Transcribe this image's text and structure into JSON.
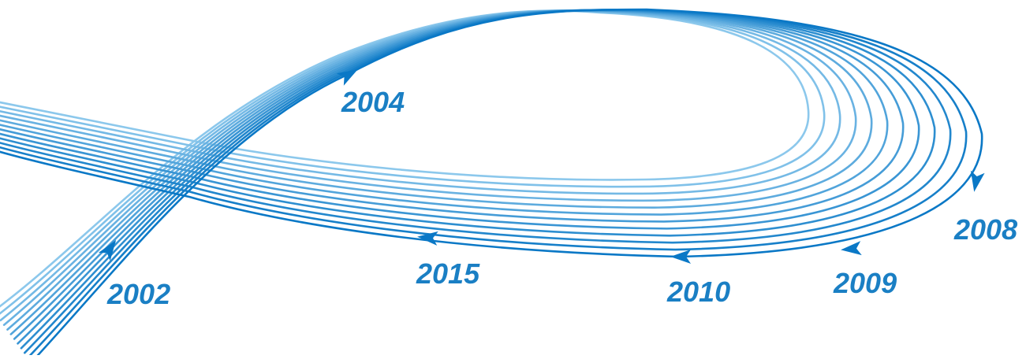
{
  "labels": {
    "y2004": "2004",
    "y2002": "2002",
    "y2015": "2015",
    "y2010": "2010",
    "y2009": "2009",
    "y2008": "2008"
  },
  "colors": {
    "dark": "#0a78c6",
    "light": "#8cc8ec",
    "label": "#1a7fc4"
  },
  "line_count": 12
}
